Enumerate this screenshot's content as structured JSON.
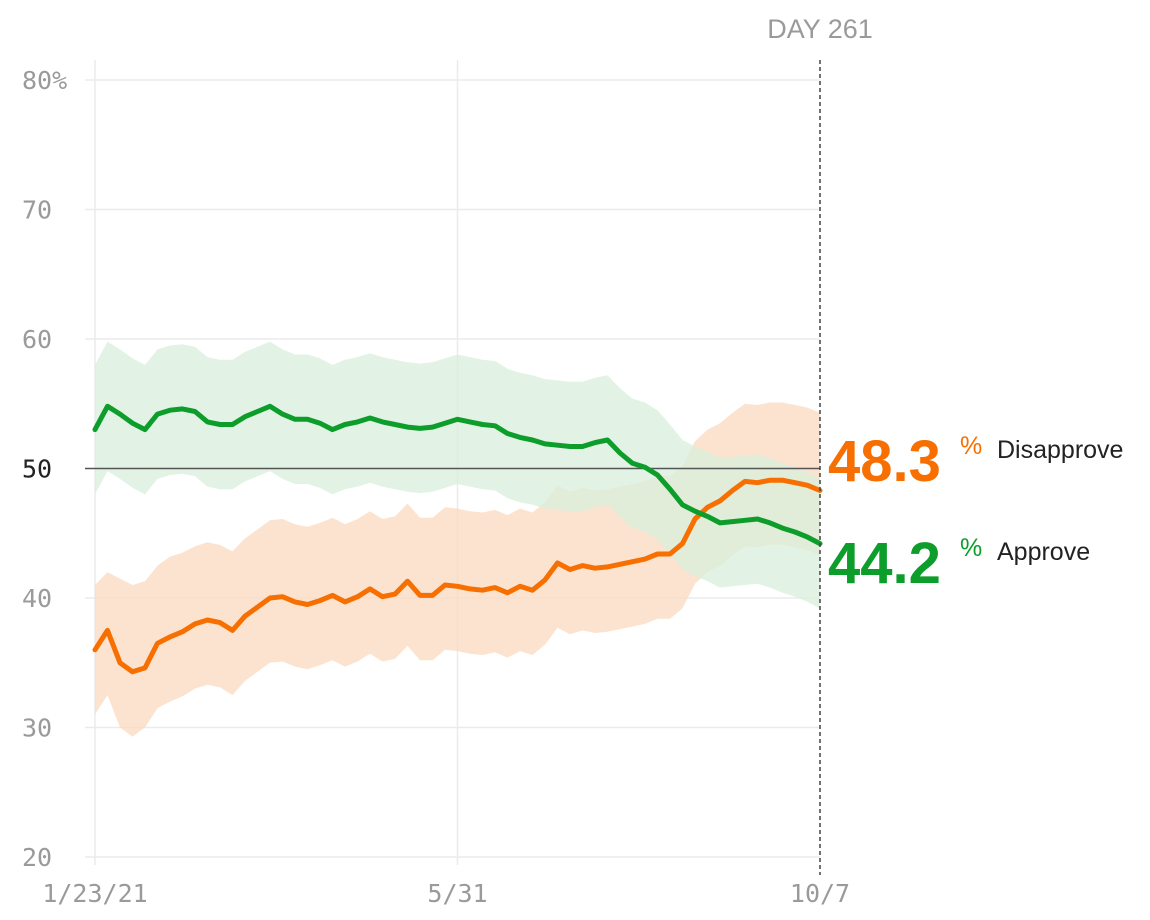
{
  "chart_data": {
    "type": "line",
    "x_tick_labels": [
      "1/23/21",
      "5/31",
      "10/7"
    ],
    "y_tick_labels": [
      "80%",
      "70",
      "60",
      "50",
      "40",
      "30",
      "20"
    ],
    "ylim": [
      20,
      80
    ],
    "reference_line": 50,
    "marker_label": "DAY 261",
    "grid": true,
    "series": [
      {
        "name": "Disapprove",
        "color": "#f76f00",
        "band_color": "#fbd9bf",
        "current_value": "48.3",
        "values": [
          36.0,
          37.5,
          35.0,
          34.3,
          34.6,
          36.5,
          37.0,
          37.4,
          38.0,
          38.3,
          38.1,
          37.5,
          38.6,
          39.3,
          40.0,
          40.1,
          39.7,
          39.5,
          39.8,
          40.2,
          39.7,
          40.1,
          40.7,
          40.1,
          40.3,
          41.3,
          40.2,
          40.2,
          41.0,
          40.9,
          40.7,
          40.6,
          40.8,
          40.4,
          40.9,
          40.6,
          41.4,
          42.7,
          42.2,
          42.5,
          42.3,
          42.4,
          42.6,
          42.8,
          43.0,
          43.4,
          43.4,
          44.2,
          46.1,
          47.0,
          47.5,
          48.3,
          49.0,
          48.9,
          49.1,
          49.1,
          48.9,
          48.7,
          48.3
        ],
        "band_upper": [
          41.0,
          42.0,
          41.5,
          41.0,
          41.3,
          42.5,
          43.2,
          43.5,
          44.0,
          44.3,
          44.1,
          43.6,
          44.6,
          45.3,
          46.0,
          46.1,
          45.7,
          45.5,
          45.8,
          46.2,
          45.7,
          46.1,
          46.7,
          46.1,
          46.3,
          47.3,
          46.2,
          46.2,
          47.0,
          46.9,
          46.7,
          46.6,
          46.8,
          46.4,
          46.9,
          46.6,
          47.4,
          48.7,
          48.2,
          48.5,
          48.3,
          48.4,
          48.6,
          48.8,
          49.0,
          49.4,
          49.4,
          50.2,
          52.1,
          53.0,
          53.5,
          54.3,
          55.0,
          54.9,
          55.1,
          55.1,
          54.9,
          54.7,
          54.3
        ],
        "band_lower": [
          31.0,
          32.5,
          30.0,
          29.3,
          30.0,
          31.5,
          32.0,
          32.4,
          33.0,
          33.3,
          33.1,
          32.5,
          33.6,
          34.3,
          35.0,
          35.1,
          34.7,
          34.5,
          34.8,
          35.2,
          34.7,
          35.1,
          35.7,
          35.1,
          35.3,
          36.3,
          35.2,
          35.2,
          36.0,
          35.9,
          35.7,
          35.6,
          35.8,
          35.4,
          35.9,
          35.6,
          36.4,
          37.7,
          37.2,
          37.5,
          37.3,
          37.4,
          37.6,
          37.8,
          38.0,
          38.4,
          38.4,
          39.2,
          41.1,
          42.0,
          42.5,
          43.3,
          44.0,
          43.9,
          44.1,
          44.1,
          43.9,
          43.7,
          43.3
        ]
      },
      {
        "name": "Approve",
        "color": "#0c9d2a",
        "band_color": "#d8efdc",
        "current_value": "44.2",
        "values": [
          53.0,
          54.8,
          54.2,
          53.5,
          53.0,
          54.2,
          54.5,
          54.6,
          54.4,
          53.6,
          53.4,
          53.4,
          54.0,
          54.4,
          54.8,
          54.2,
          53.8,
          53.8,
          53.5,
          53.0,
          53.4,
          53.6,
          53.9,
          53.6,
          53.4,
          53.2,
          53.1,
          53.2,
          53.5,
          53.8,
          53.6,
          53.4,
          53.3,
          52.7,
          52.4,
          52.2,
          51.9,
          51.8,
          51.7,
          51.7,
          52.0,
          52.2,
          51.2,
          50.4,
          50.1,
          49.5,
          48.4,
          47.2,
          46.7,
          46.3,
          45.8,
          45.9,
          46.0,
          46.1,
          45.8,
          45.4,
          45.1,
          44.7,
          44.2
        ],
        "band_upper": [
          58.0,
          59.8,
          59.2,
          58.5,
          58.0,
          59.2,
          59.5,
          59.6,
          59.4,
          58.6,
          58.4,
          58.4,
          59.0,
          59.4,
          59.8,
          59.2,
          58.8,
          58.8,
          58.5,
          58.0,
          58.4,
          58.6,
          58.9,
          58.6,
          58.4,
          58.2,
          58.1,
          58.2,
          58.5,
          58.8,
          58.6,
          58.4,
          58.3,
          57.7,
          57.4,
          57.2,
          56.9,
          56.8,
          56.7,
          56.7,
          57.0,
          57.2,
          56.2,
          55.4,
          55.1,
          54.5,
          53.4,
          52.2,
          51.7,
          51.3,
          50.8,
          50.9,
          51.0,
          51.1,
          50.8,
          50.4,
          50.1,
          49.7,
          49.2
        ],
        "band_lower": [
          48.0,
          49.8,
          49.2,
          48.5,
          48.0,
          49.2,
          49.5,
          49.6,
          49.4,
          48.6,
          48.4,
          48.4,
          49.0,
          49.4,
          49.8,
          49.2,
          48.8,
          48.8,
          48.5,
          48.0,
          48.4,
          48.6,
          48.9,
          48.6,
          48.4,
          48.2,
          48.1,
          48.2,
          48.5,
          48.8,
          48.6,
          48.4,
          48.3,
          47.7,
          47.4,
          47.2,
          46.9,
          46.8,
          46.7,
          46.7,
          47.0,
          47.2,
          46.2,
          45.4,
          45.1,
          44.5,
          43.4,
          42.2,
          41.7,
          41.3,
          40.8,
          40.9,
          41.0,
          41.1,
          40.8,
          40.4,
          40.1,
          39.7,
          39.2
        ]
      }
    ]
  },
  "labels": {
    "percent_sign": "%"
  }
}
